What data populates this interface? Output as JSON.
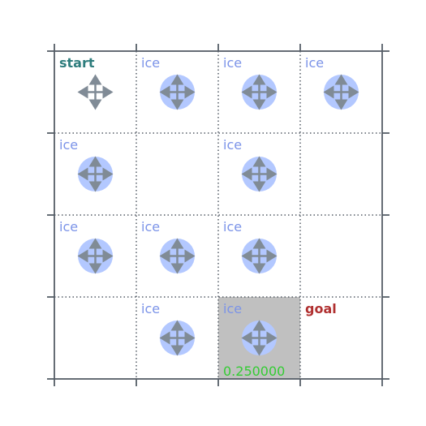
{
  "grid": {
    "rows": 4,
    "cols": 4,
    "cells": [
      [
        {
          "label": "start",
          "kind": "start",
          "icon": "move-arrows-icon",
          "ice": false,
          "highlight": false,
          "value": ""
        },
        {
          "label": "ice",
          "kind": "ice",
          "icon": "move-arrows-icon",
          "ice": true,
          "highlight": false,
          "value": ""
        },
        {
          "label": "ice",
          "kind": "ice",
          "icon": "move-arrows-icon",
          "ice": true,
          "highlight": false,
          "value": ""
        },
        {
          "label": "ice",
          "kind": "ice",
          "icon": "move-arrows-icon",
          "ice": true,
          "highlight": false,
          "value": ""
        }
      ],
      [
        {
          "label": "ice",
          "kind": "ice",
          "icon": "move-arrows-icon",
          "ice": true,
          "highlight": false,
          "value": ""
        },
        {
          "label": "",
          "kind": "empty",
          "icon": "",
          "ice": false,
          "highlight": false,
          "value": ""
        },
        {
          "label": "ice",
          "kind": "ice",
          "icon": "move-arrows-icon",
          "ice": true,
          "highlight": false,
          "value": ""
        },
        {
          "label": "",
          "kind": "empty",
          "icon": "",
          "ice": false,
          "highlight": false,
          "value": ""
        }
      ],
      [
        {
          "label": "ice",
          "kind": "ice",
          "icon": "move-arrows-icon",
          "ice": true,
          "highlight": false,
          "value": ""
        },
        {
          "label": "ice",
          "kind": "ice",
          "icon": "move-arrows-icon",
          "ice": true,
          "highlight": false,
          "value": ""
        },
        {
          "label": "ice",
          "kind": "ice",
          "icon": "move-arrows-icon",
          "ice": true,
          "highlight": false,
          "value": ""
        },
        {
          "label": "",
          "kind": "empty",
          "icon": "",
          "ice": false,
          "highlight": false,
          "value": ""
        }
      ],
      [
        {
          "label": "",
          "kind": "empty",
          "icon": "",
          "ice": false,
          "highlight": false,
          "value": ""
        },
        {
          "label": "ice",
          "kind": "ice",
          "icon": "move-arrows-icon",
          "ice": true,
          "highlight": false,
          "value": ""
        },
        {
          "label": "ice",
          "kind": "ice",
          "icon": "move-arrows-icon",
          "ice": true,
          "highlight": true,
          "value": "0.250000"
        },
        {
          "label": "goal",
          "kind": "goal",
          "icon": "",
          "ice": false,
          "highlight": false,
          "value": ""
        }
      ]
    ]
  },
  "colors": {
    "border": "#555d66",
    "grid_dots": "#555d66",
    "ice_fill": "#b3c8ff",
    "arrow": "#808b96",
    "highlight": "#c0c0c0",
    "value_text": "#33cc33"
  }
}
